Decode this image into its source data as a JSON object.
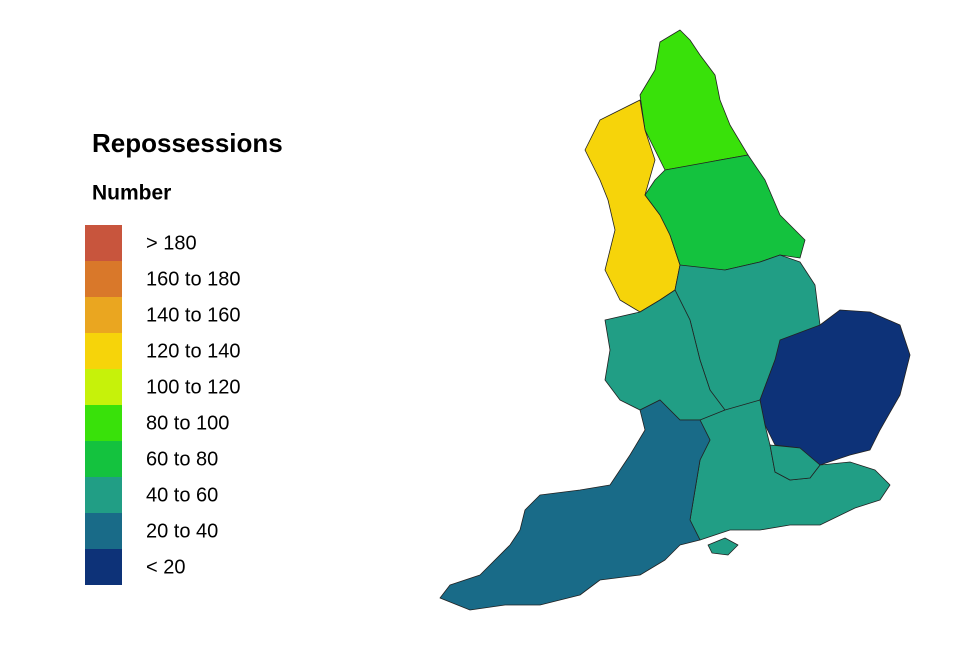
{
  "title": "Repossessions",
  "legend": {
    "title": "Number",
    "items": [
      {
        "label": "> 180",
        "color": "#c8553d"
      },
      {
        "label": "160 to 180",
        "color": "#d9782a"
      },
      {
        "label": "140 to 160",
        "color": "#eaa620"
      },
      {
        "label": "120 to 140",
        "color": "#f6d40a"
      },
      {
        "label": "100 to 120",
        "color": "#c6f20a"
      },
      {
        "label": "80 to 100",
        "color": "#39e10a"
      },
      {
        "label": "60 to 80",
        "color": "#14c23e"
      },
      {
        "label": "40 to 60",
        "color": "#219e85"
      },
      {
        "label": "20 to 40",
        "color": "#196b88"
      },
      {
        "label": "< 20",
        "color": "#0d3278"
      }
    ]
  }
}
